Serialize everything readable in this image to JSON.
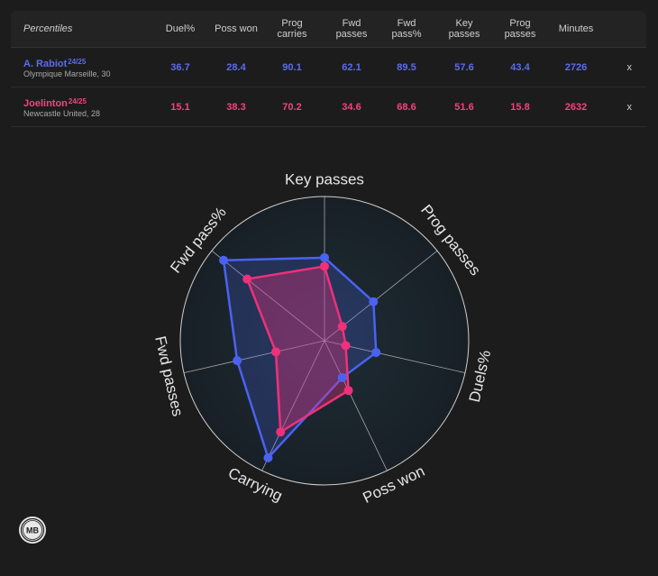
{
  "table": {
    "header_label": "Percentiles",
    "columns": [
      "Duel%",
      "Poss won",
      "Prog\ncarries",
      "Fwd\npasses",
      "Fwd\npass%",
      "Key\npasses",
      "Prog\npasses",
      "Minutes"
    ],
    "remove_label": "x",
    "players": [
      {
        "name": "A. Rabiot",
        "season": "24/25",
        "club": "Olympique Marseille, 30",
        "color": "#4a62f2",
        "values": [
          "36.7",
          "28.4",
          "90.1",
          "62.1",
          "89.5",
          "57.6",
          "43.4",
          "2726"
        ]
      },
      {
        "name": "Joelinton",
        "season": "24/25",
        "club": "Newcastle United, 28",
        "color": "#f0307a",
        "values": [
          "15.1",
          "38.3",
          "70.2",
          "34.6",
          "68.6",
          "51.6",
          "15.8",
          "2632"
        ]
      }
    ]
  },
  "chart_data": {
    "type": "radar",
    "axes": [
      "Key passes",
      "Prog passes",
      "Duels%",
      "Poss won",
      "Carrying",
      "Fwd passes",
      "Fwd pass%"
    ],
    "range": [
      0,
      100
    ],
    "series": [
      {
        "name": "A. Rabiot",
        "values": [
          57.6,
          43.4,
          36.7,
          28.4,
          90.1,
          62.1,
          89.5
        ],
        "color": "#4a62f2"
      },
      {
        "name": "Joelinton",
        "values": [
          51.6,
          15.8,
          15.1,
          38.3,
          70.2,
          34.6,
          68.6
        ],
        "color": "#f0307a"
      }
    ]
  },
  "logo": {
    "text": "MB"
  }
}
